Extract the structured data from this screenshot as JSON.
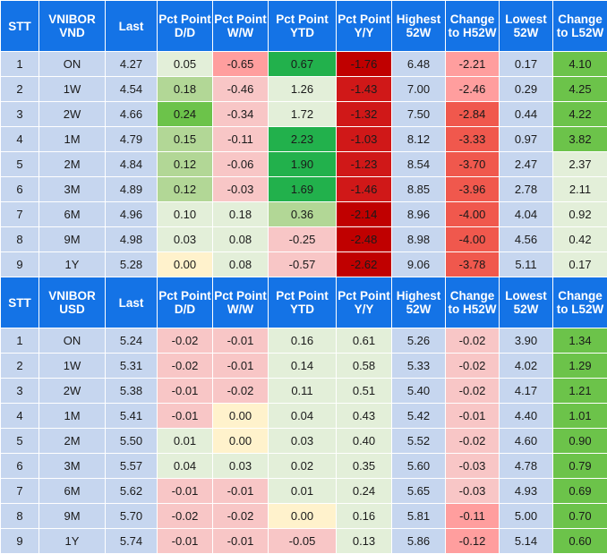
{
  "headers_vnd": [
    "STT",
    "VNIBOR VND",
    "Last",
    "Pct Point D/D",
    "Pct Point W/W",
    "Pct Point YTD",
    "Pct Point Y/Y",
    "Highest 52W",
    "Change to H52W",
    "Lowest 52W",
    "Change to L52W"
  ],
  "headers_usd": [
    "STT",
    "VNIBOR USD",
    "Last",
    "Pct Point D/D",
    "Pct Point W/W",
    "Pct Point YTD",
    "Pct Point Y/Y",
    "Highest 52W",
    "Change to H52W",
    "Lowest 52W",
    "Change to L52W"
  ],
  "vnd_rows": [
    {
      "stt": "1",
      "tenor": "ON",
      "last": "4.27",
      "dd": "0.05",
      "ww": "-0.65",
      "ytd": "0.67",
      "yy": "-1.76",
      "hi": "6.48",
      "chi": "-2.21",
      "lo": "0.17",
      "clo": "4.10"
    },
    {
      "stt": "2",
      "tenor": "1W",
      "last": "4.54",
      "dd": "0.18",
      "ww": "-0.46",
      "ytd": "1.26",
      "yy": "-1.43",
      "hi": "7.00",
      "chi": "-2.46",
      "lo": "0.29",
      "clo": "4.25"
    },
    {
      "stt": "3",
      "tenor": "2W",
      "last": "4.66",
      "dd": "0.24",
      "ww": "-0.34",
      "ytd": "1.72",
      "yy": "-1.32",
      "hi": "7.50",
      "chi": "-2.84",
      "lo": "0.44",
      "clo": "4.22"
    },
    {
      "stt": "4",
      "tenor": "1M",
      "last": "4.79",
      "dd": "0.15",
      "ww": "-0.11",
      "ytd": "2.23",
      "yy": "-1.03",
      "hi": "8.12",
      "chi": "-3.33",
      "lo": "0.97",
      "clo": "3.82"
    },
    {
      "stt": "5",
      "tenor": "2M",
      "last": "4.84",
      "dd": "0.12",
      "ww": "-0.06",
      "ytd": "1.90",
      "yy": "-1.23",
      "hi": "8.54",
      "chi": "-3.70",
      "lo": "2.47",
      "clo": "2.37"
    },
    {
      "stt": "6",
      "tenor": "3M",
      "last": "4.89",
      "dd": "0.12",
      "ww": "-0.03",
      "ytd": "1.69",
      "yy": "-1.46",
      "hi": "8.85",
      "chi": "-3.96",
      "lo": "2.78",
      "clo": "2.11"
    },
    {
      "stt": "7",
      "tenor": "6M",
      "last": "4.96",
      "dd": "0.10",
      "ww": "0.18",
      "ytd": "0.36",
      "yy": "-2.14",
      "hi": "8.96",
      "chi": "-4.00",
      "lo": "4.04",
      "clo": "0.92"
    },
    {
      "stt": "8",
      "tenor": "9M",
      "last": "4.98",
      "dd": "0.03",
      "ww": "0.08",
      "ytd": "-0.25",
      "yy": "-2.48",
      "hi": "8.98",
      "chi": "-4.00",
      "lo": "4.56",
      "clo": "0.42"
    },
    {
      "stt": "9",
      "tenor": "1Y",
      "last": "5.28",
      "dd": "0.00",
      "ww": "0.08",
      "ytd": "-0.57",
      "yy": "-2.62",
      "hi": "9.06",
      "chi": "-3.78",
      "lo": "5.11",
      "clo": "0.17"
    }
  ],
  "usd_rows": [
    {
      "stt": "1",
      "tenor": "ON",
      "last": "5.24",
      "dd": "-0.02",
      "ww": "-0.01",
      "ytd": "0.16",
      "yy": "0.61",
      "hi": "5.26",
      "chi": "-0.02",
      "lo": "3.90",
      "clo": "1.34"
    },
    {
      "stt": "2",
      "tenor": "1W",
      "last": "5.31",
      "dd": "-0.02",
      "ww": "-0.01",
      "ytd": "0.14",
      "yy": "0.58",
      "hi": "5.33",
      "chi": "-0.02",
      "lo": "4.02",
      "clo": "1.29"
    },
    {
      "stt": "3",
      "tenor": "2W",
      "last": "5.38",
      "dd": "-0.01",
      "ww": "-0.02",
      "ytd": "0.11",
      "yy": "0.51",
      "hi": "5.40",
      "chi": "-0.02",
      "lo": "4.17",
      "clo": "1.21"
    },
    {
      "stt": "4",
      "tenor": "1M",
      "last": "5.41",
      "dd": "-0.01",
      "ww": "0.00",
      "ytd": "0.04",
      "yy": "0.43",
      "hi": "5.42",
      "chi": "-0.01",
      "lo": "4.40",
      "clo": "1.01"
    },
    {
      "stt": "5",
      "tenor": "2M",
      "last": "5.50",
      "dd": "0.01",
      "ww": "0.00",
      "ytd": "0.03",
      "yy": "0.40",
      "hi": "5.52",
      "chi": "-0.02",
      "lo": "4.60",
      "clo": "0.90"
    },
    {
      "stt": "6",
      "tenor": "3M",
      "last": "5.57",
      "dd": "0.04",
      "ww": "0.03",
      "ytd": "0.02",
      "yy": "0.35",
      "hi": "5.60",
      "chi": "-0.03",
      "lo": "4.78",
      "clo": "0.79"
    },
    {
      "stt": "7",
      "tenor": "6M",
      "last": "5.62",
      "dd": "-0.01",
      "ww": "-0.01",
      "ytd": "0.01",
      "yy": "0.24",
      "hi": "5.65",
      "chi": "-0.03",
      "lo": "4.93",
      "clo": "0.69"
    },
    {
      "stt": "8",
      "tenor": "9M",
      "last": "5.70",
      "dd": "-0.02",
      "ww": "-0.02",
      "ytd": "0.00",
      "yy": "0.16",
      "hi": "5.81",
      "chi": "-0.11",
      "lo": "5.00",
      "clo": "0.70"
    },
    {
      "stt": "9",
      "tenor": "1Y",
      "last": "5.74",
      "dd": "-0.01",
      "ww": "-0.01",
      "ytd": "-0.05",
      "yy": "0.13",
      "hi": "5.86",
      "chi": "-0.12",
      "lo": "5.14",
      "clo": "0.60"
    }
  ],
  "colors": {
    "header_bg": "#1473e6",
    "label_bg": "#c6d6ef",
    "green_deep": "#22b14c",
    "green_mid": "#6cc34a",
    "green_light": "#b2d796",
    "green_pale": "#e3efd9",
    "yellow_pale": "#fff2cc",
    "red_pale": "#f8c6c6",
    "red_light": "#ff9e9e",
    "red_mid": "#f0584d",
    "red_deep": "#d01818"
  }
}
